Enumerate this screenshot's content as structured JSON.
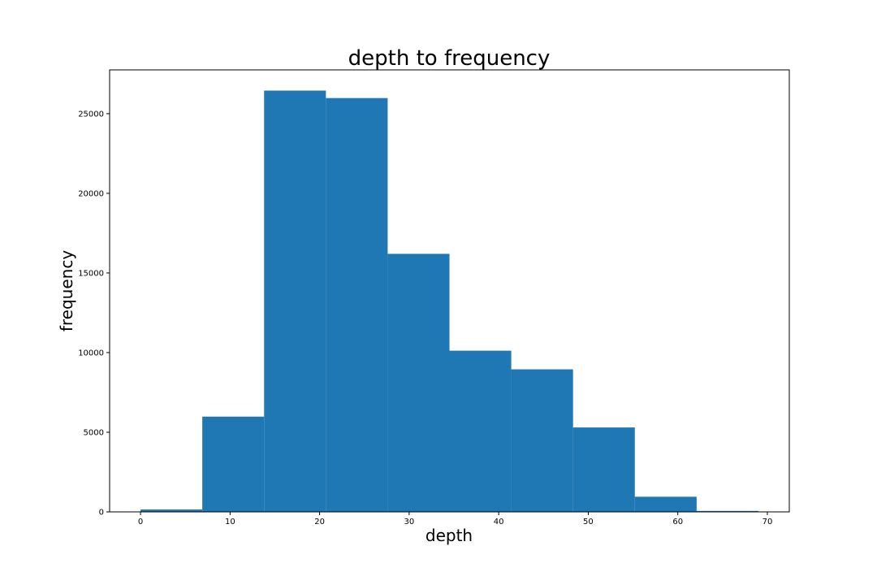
{
  "chart_data": {
    "type": "bar",
    "title": "depth to frequency",
    "xlabel": "depth",
    "ylabel": "frequency",
    "bin_edges": [
      0,
      6.9,
      13.8,
      20.7,
      27.6,
      34.5,
      41.4,
      48.3,
      55.2,
      62.1,
      69
    ],
    "values": [
      150,
      5980,
      26450,
      25980,
      16200,
      10120,
      8950,
      5300,
      950,
      60
    ],
    "xlim": [
      -3.45,
      72.45
    ],
    "ylim": [
      0,
      27750
    ],
    "xticks": [
      0,
      10,
      20,
      30,
      40,
      50,
      60,
      70
    ],
    "yticks": [
      0,
      5000,
      10000,
      15000,
      20000,
      25000
    ],
    "bar_color": "#1f77b4",
    "grid": false
  }
}
